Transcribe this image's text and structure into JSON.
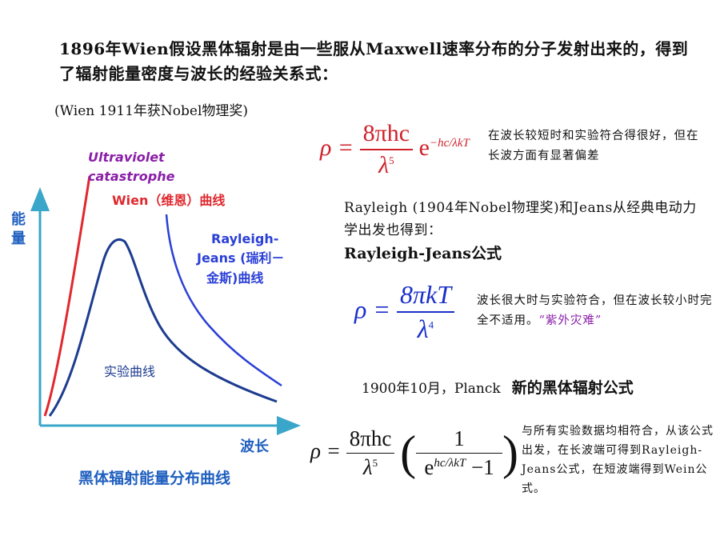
{
  "title": "1896年Wien假设黑体辐射是由一些服从Maxwell速率分布的分子发射出来的，得到了辐射能量密度与波长的经验关系式：",
  "subtitle": "(Wien 1911年获Nobel物理奖)",
  "wien_formula": {
    "lhs": "ρ =",
    "numerator": "8πhc",
    "denominator": "λ",
    "den_exp": "5",
    "exp_base": "e",
    "exponent": "−hc/λkT",
    "note": "在波长较短时和实验符合得很好，但在长波方面有显著偏差"
  },
  "rayleigh_text": "Rayleigh  (1904年Nobel物理奖)和Jeans从经典电动力学出发也得到：",
  "rj_formula_label": "Rayleigh-Jeans公式",
  "rj_formula": {
    "lhs": "ρ =",
    "numerator": "8πkT",
    "denominator": "λ",
    "den_exp": "4",
    "note_prefix": "波长很大时与实验符合，但在波长较小时完全不适用。",
    "note_highlight": "“紫外灾难”"
  },
  "planck_text": "1900年10月，Planck",
  "planck_bold": "新的黑体辐射公式",
  "planck_formula": {
    "lhs": "ρ =",
    "numerator": "8πhc",
    "denominator": "λ",
    "den_exp": "5",
    "inner_num": "1",
    "exp_base": "e",
    "exponent": "hc/λkT",
    "minus_one": "−1",
    "note": "与所有实验数据均相符合，从该公式出发，在长波端可得到Rayleigh-Jeans公式，在短波端得到Wein公式。"
  },
  "chart": {
    "y_label": "能量",
    "x_label": "波长",
    "caption": "黑体辐射能量分布曲线",
    "uv_label_1": "Ultraviolet",
    "uv_label_2": "catastrophe",
    "wien_label": "Wien（维恩）曲线",
    "rj_label_1": "Rayleigh-",
    "rj_label_2": "Jeans (瑞利－",
    "rj_label_3": "金斯)曲线",
    "exp_label": "实验曲线",
    "colors": {
      "axis": "#3aa6c9",
      "label": "#1f5fbf",
      "red": "#e0282e",
      "blue": "#2a3fd6",
      "dark_blue": "#1d3c8f",
      "purple": "#8a1fa8"
    }
  }
}
